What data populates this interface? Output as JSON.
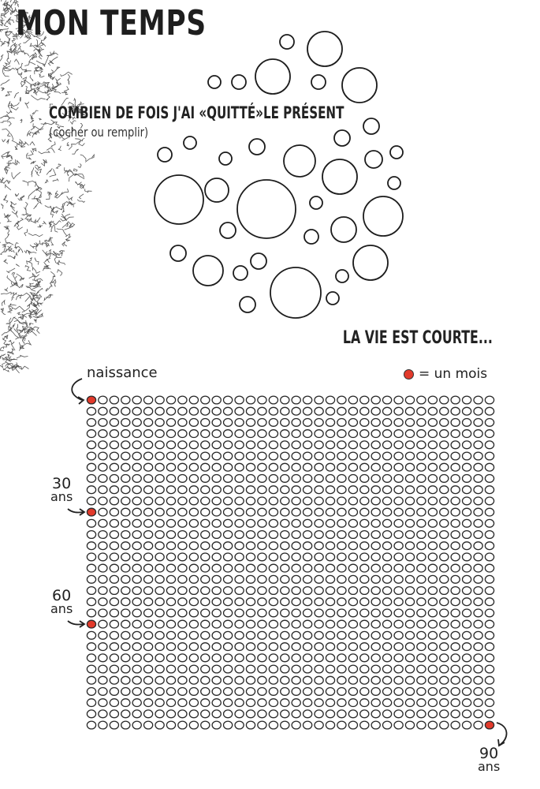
{
  "page": {
    "title": "MON TEMPS",
    "exercise_title": "COMBIEN DE FOIS J'AI «QUITTÉ»LE PRÉSENT",
    "exercise_instruction": "(cocher ou remplir)",
    "life_heading": "LA VIE EST COURTE..."
  },
  "life_grid": {
    "birth_label": "naissance",
    "legend_label": "= un mois",
    "markers": [
      {
        "age": "30",
        "unit": "ans"
      },
      {
        "age": "60",
        "unit": "ans"
      },
      {
        "age": "90",
        "unit": "ans"
      }
    ],
    "columns": 36,
    "rows": 30,
    "fill_color": "#e23a2b"
  }
}
